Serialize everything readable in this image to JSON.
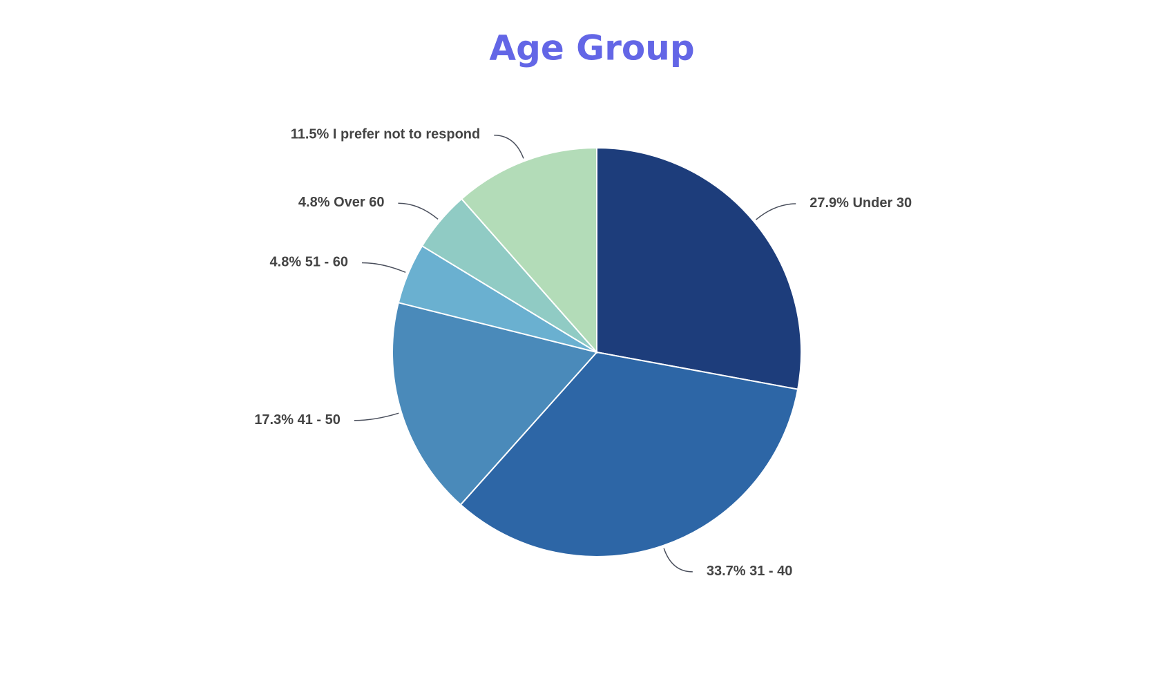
{
  "chart_data": {
    "type": "pie",
    "title": "Age Group",
    "categories": [
      "Under 30",
      "31 - 40",
      "41 - 50",
      "51 - 60",
      "Over 60",
      "I prefer not to respond"
    ],
    "values": [
      27.9,
      33.7,
      17.3,
      4.8,
      4.8,
      11.5
    ],
    "value_labels": [
      "27.9%",
      "33.7%",
      "17.3%",
      "4.8%",
      "4.8%",
      "11.5%"
    ],
    "colors": [
      "#1d3d7b",
      "#2d66a6",
      "#4a8aba",
      "#6ab0d0",
      "#90cbc4",
      "#b3dcb8"
    ]
  }
}
